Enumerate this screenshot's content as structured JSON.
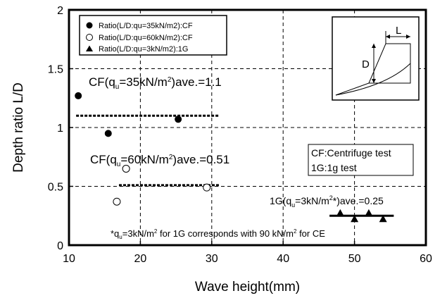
{
  "chart_data": {
    "type": "scatter",
    "xlabel": "Wave height(mm)",
    "ylabel": "Depth ratio L/D",
    "xlim": [
      10,
      60
    ],
    "ylim": [
      0,
      2
    ],
    "x_ticks": [
      "10",
      "20",
      "30",
      "40",
      "50",
      "60"
    ],
    "y_ticks": [
      "0",
      "0.5",
      "1",
      "1.5",
      "2"
    ],
    "grid": true,
    "series": [
      {
        "name": "Ratio(L/D:qu=35kN/m2):CF",
        "marker": "filled-circle",
        "points": [
          {
            "x": 11.3,
            "y": 1.27
          },
          {
            "x": 15.5,
            "y": 0.95
          },
          {
            "x": 25.3,
            "y": 1.07
          }
        ]
      },
      {
        "name": "Ratio(L/D:qu=60kN/m2):CF",
        "marker": "open-circle",
        "points": [
          {
            "x": 16.7,
            "y": 0.37
          },
          {
            "x": 18.0,
            "y": 0.65
          },
          {
            "x": 29.3,
            "y": 0.49
          }
        ]
      },
      {
        "name": "Ratio(L/D:qu=3kN/m2):1G",
        "marker": "filled-triangle",
        "points": [
          {
            "x": 48.0,
            "y": 0.27
          },
          {
            "x": 50.0,
            "y": 0.22
          },
          {
            "x": 52.0,
            "y": 0.27
          },
          {
            "x": 54.0,
            "y": 0.22
          }
        ]
      }
    ],
    "average_lines": [
      {
        "label_main": "CF(q",
        "label_sub": "u",
        "label_mid": "=35kN/m",
        "label_sup": "2",
        "label_end": ")ave.=1.1",
        "y": 1.1,
        "x_from": 11,
        "x_to": 31,
        "style": "dashed"
      },
      {
        "label_main": "CF(q",
        "label_sub": "u",
        "label_mid": "=60kN/m",
        "label_sup": "2",
        "label_end": ")ave.=0.51",
        "y": 0.51,
        "x_from": 17,
        "x_to": 31,
        "style": "dashed"
      },
      {
        "label_main": "1G(q",
        "label_sub": "u",
        "label_mid": "=3kN/m",
        "label_sup": "2",
        "label_end": "*)ave.=0.25",
        "y": 0.25,
        "x_from": 46.5,
        "x_to": 55.5,
        "style": "solid"
      }
    ],
    "annotation_box": [
      "CF:Centrifuge test",
      "1G:1g test"
    ],
    "footnote": {
      "pre": "*q",
      "sub": "u",
      "mid1": "=3kN/m",
      "sup1": "2",
      "mid2": " for 1G corresponds with 90 kN/m",
      "sup2": "2",
      "end": " for CE"
    },
    "inset_labels": {
      "length": "L",
      "depth": "D"
    },
    "legend_position": "top-left"
  }
}
